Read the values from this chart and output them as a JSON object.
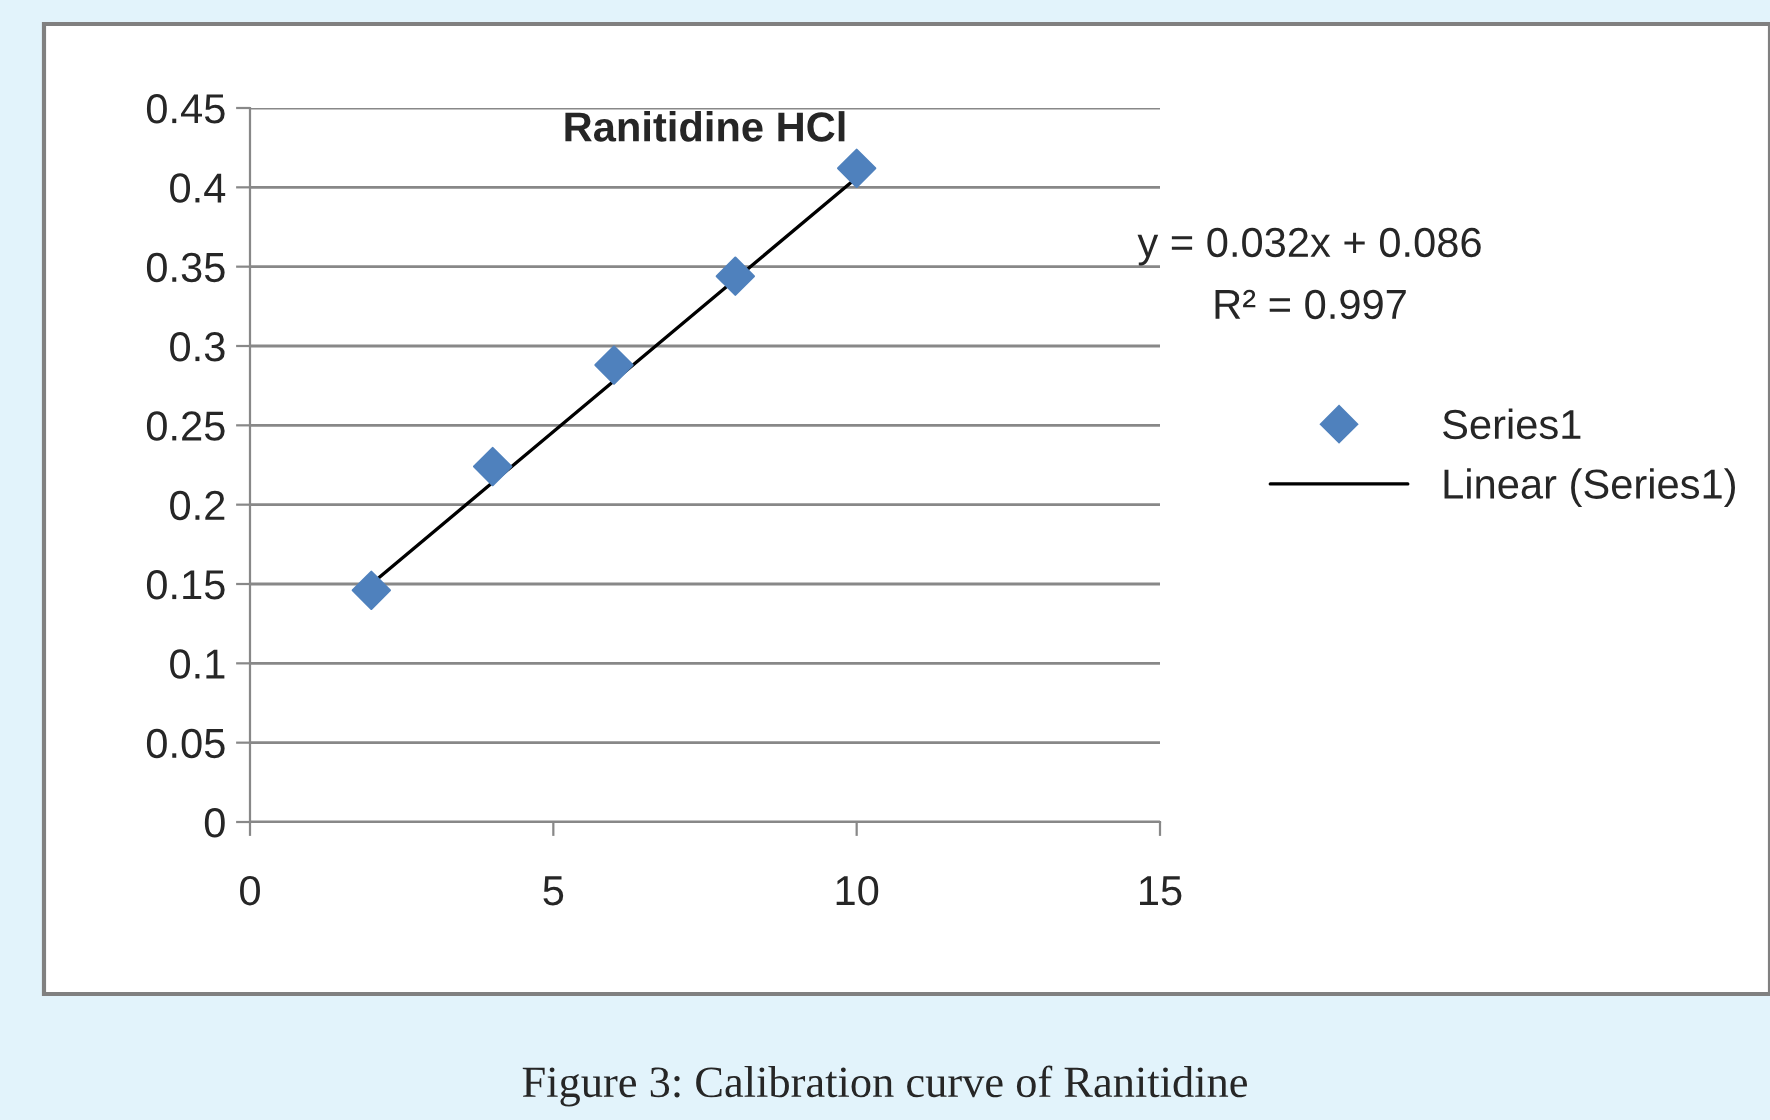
{
  "chart_data": {
    "type": "scatter",
    "title": "Ranitidine HCl",
    "series": [
      {
        "name": "Series1",
        "color": "#4f81bd",
        "marker": "diamond",
        "x": [
          2,
          4,
          6,
          8,
          10
        ],
        "values": [
          0.146,
          0.224,
          0.288,
          0.344,
          0.412
        ]
      },
      {
        "name": "Linear (Series1)",
        "type": "line",
        "color": "#000000",
        "marker": "none",
        "line_style": "solid",
        "x": [
          2,
          10
        ],
        "values": [
          0.15,
          0.406
        ]
      }
    ],
    "xlim": [
      0,
      15
    ],
    "xticks": [
      0,
      5,
      10,
      15
    ],
    "ylim": [
      0,
      0.45
    ],
    "yticks": [
      0,
      0.05,
      0.1,
      0.15,
      0.2,
      0.25,
      0.3,
      0.35,
      0.4,
      0.45
    ],
    "grid": "y",
    "legend": "right",
    "annotations": [
      "y = 0.032x + 0.086",
      "R² = 0.997",
      "Figure 3: Calibration curve of Ranitidine"
    ]
  }
}
